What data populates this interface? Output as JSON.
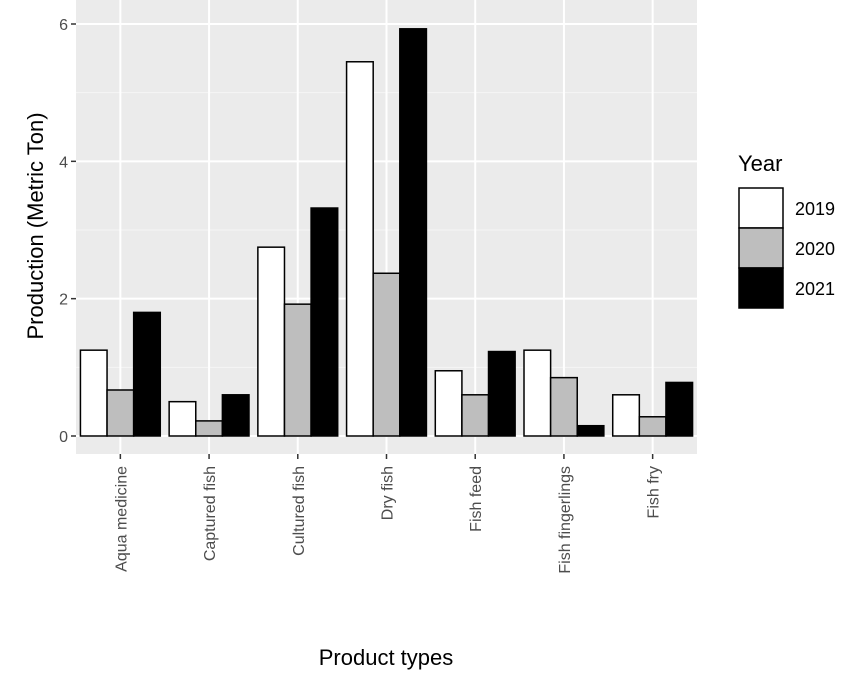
{
  "chart_data": {
    "type": "bar",
    "title": "",
    "xlabel": "Product types",
    "ylabel": "Production (Metric Ton)",
    "ylim": [
      0,
      6
    ],
    "yticks": [
      0,
      2,
      4,
      6
    ],
    "grid": true,
    "legend_title": "Year",
    "legend_position": "right",
    "categories": [
      "Aqua medicine",
      "Captured fish",
      "Cultured fish",
      "Dry fish",
      "Fish feed",
      "Fish fingerlings",
      "Fish fry"
    ],
    "series": [
      {
        "name": "2019",
        "color": "#ffffff",
        "values": [
          1.25,
          0.5,
          2.75,
          5.45,
          0.95,
          1.25,
          0.6
        ]
      },
      {
        "name": "2020",
        "color": "#bebebe",
        "values": [
          0.67,
          0.22,
          1.92,
          2.37,
          0.6,
          0.85,
          0.28
        ]
      },
      {
        "name": "2021",
        "color": "#000000",
        "values": [
          1.8,
          0.6,
          3.32,
          5.93,
          1.23,
          0.15,
          0.78
        ]
      }
    ]
  }
}
